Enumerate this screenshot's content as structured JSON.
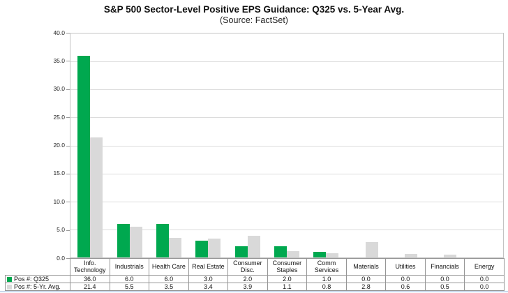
{
  "header": {
    "title": "S&P 500 Sector-Level Positive EPS Guidance: Q325 vs. 5-Year Avg.",
    "subtitle": "(Source: FactSet)"
  },
  "chart_data": {
    "type": "bar",
    "title": "S&P 500 Sector-Level Positive EPS Guidance: Q325 vs. 5-Year Avg.",
    "subtitle": "(Source: FactSet)",
    "categories": [
      "Info. Technology",
      "Industrials",
      "Health Care",
      "Real Estate",
      "Consumer Disc.",
      "Consumer Staples",
      "Comm Services",
      "Materials",
      "Utilities",
      "Financials",
      "Energy"
    ],
    "series": [
      {
        "name": "Pos #: Q325",
        "color": "#00a84f",
        "values": [
          36.0,
          6.0,
          6.0,
          3.0,
          2.0,
          2.0,
          1.0,
          0.0,
          0.0,
          0.0,
          0.0
        ]
      },
      {
        "name": "Pos #: 5-Yr. Avg.",
        "color": "#d9d9d9",
        "values": [
          21.4,
          5.5,
          3.5,
          3.4,
          3.9,
          1.1,
          0.8,
          2.8,
          0.6,
          0.5,
          0.0
        ]
      }
    ],
    "ylim": [
      0,
      40
    ],
    "ytick_step": 5,
    "yticks": [
      "40.0",
      "35.0",
      "30.0",
      "25.0",
      "20.0",
      "15.0",
      "10.0",
      "5.0",
      "0.0"
    ],
    "grid": true,
    "legend_position": "table-left",
    "value_format": "one-decimal"
  },
  "colors": {
    "series_q325": "#00a84f",
    "series_5yr_avg": "#d9d9d9",
    "gridline": "#dcdcdc",
    "table_border": "#959595",
    "bottom_rule": "#c9d9ec"
  }
}
